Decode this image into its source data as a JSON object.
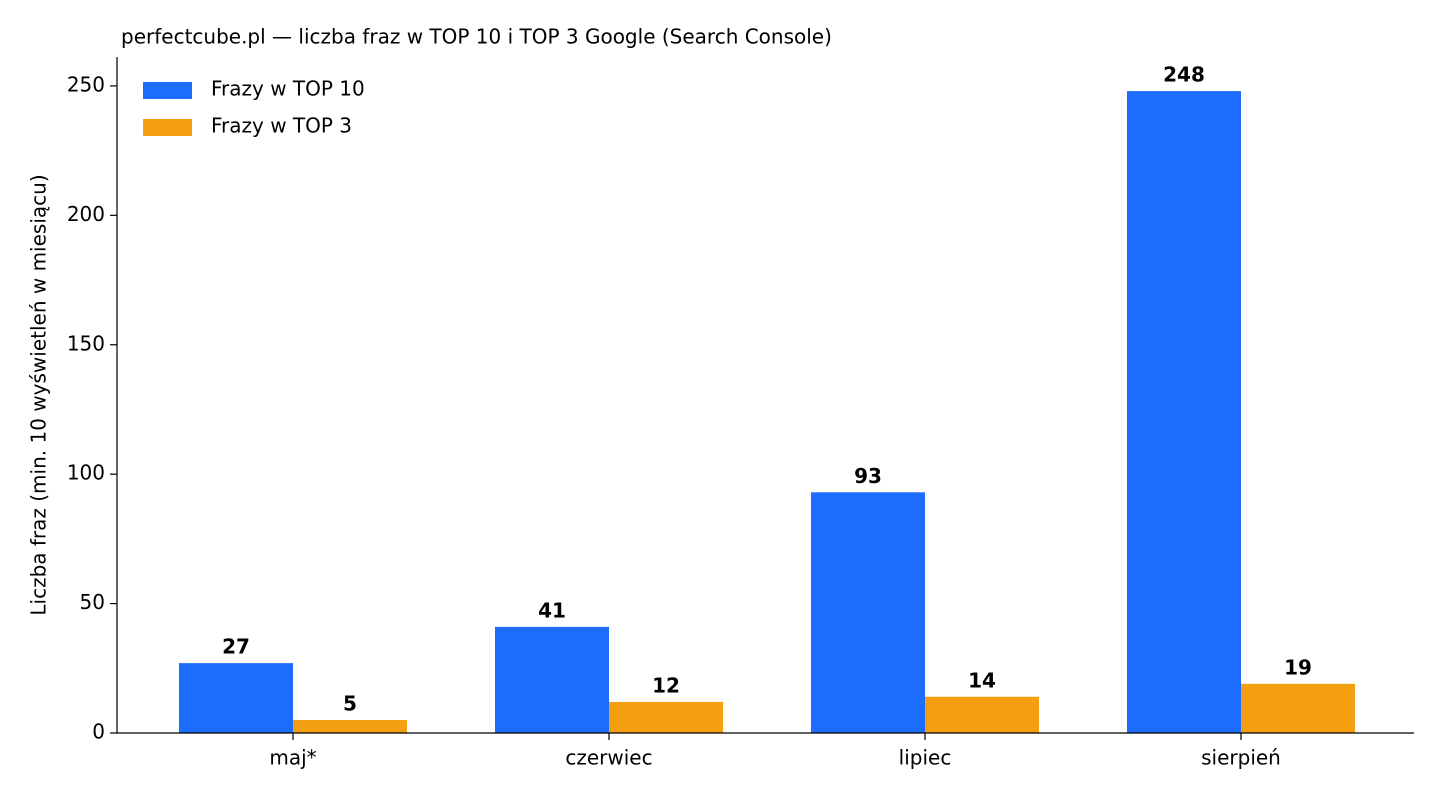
{
  "chart_data": {
    "type": "bar",
    "title": "perfectcube.pl — liczba fraz w TOP 10 i TOP 3 Google (Search Console)",
    "ylabel": "Liczba fraz (min. 10 wyświetleń w miesiącu)",
    "categories": [
      "maj*",
      "czerwiec",
      "lipiec",
      "sierpień"
    ],
    "series": [
      {
        "name": "Frazy w TOP 10",
        "color": "#1c6dfd",
        "values": [
          27,
          41,
          93,
          248
        ]
      },
      {
        "name": "Frazy w TOP 3",
        "color": "#f49f0f",
        "values": [
          5,
          12,
          14,
          19
        ]
      }
    ],
    "ylim": [
      0,
      260.4
    ],
    "yticks": [
      0,
      50,
      100,
      150,
      200,
      250
    ],
    "legend": "upper left"
  }
}
